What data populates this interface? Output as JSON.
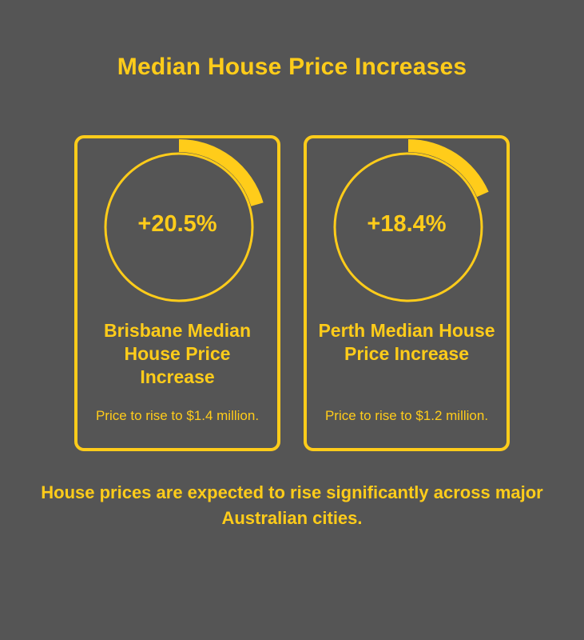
{
  "title": "Median House Price Increases",
  "colors": {
    "background": "#555555",
    "accent": "#FFCC1A"
  },
  "cards": [
    {
      "percent_label": "+20.5%",
      "ring_fill_fraction": 0.205,
      "label": "Brisbane Median House Price Increase",
      "subtext": "Price to rise to $1.4 million."
    },
    {
      "percent_label": "+18.4%",
      "ring_fill_fraction": 0.184,
      "label": "Perth Median House Price Increase",
      "subtext": "Price to rise to $1.2 million."
    }
  ],
  "footer": "House prices are expected to rise significantly across major Australian cities."
}
